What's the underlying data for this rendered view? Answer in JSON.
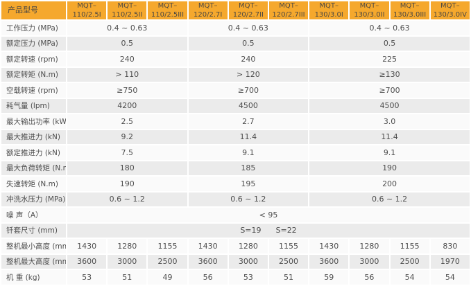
{
  "table": {
    "corner_label": "产品型号",
    "columns": [
      {
        "line1": "MQT–",
        "line2": "110/2.5I"
      },
      {
        "line1": "MQT–",
        "line2": "110/2.5II"
      },
      {
        "line1": "MQT–",
        "line2": "110/2.5III"
      },
      {
        "line1": "MQT–",
        "line2": "120/2.7I"
      },
      {
        "line1": "MQT–",
        "line2": "120/2.7II"
      },
      {
        "line1": "MQT–",
        "line2": "120/2.7III"
      },
      {
        "line1": "MQT–",
        "line2": "130/3.0I"
      },
      {
        "line1": "MQT–",
        "line2": "130/3.0II"
      },
      {
        "line1": "MQT–",
        "line2": "130/3.0III"
      },
      {
        "line1": "MQT–",
        "line2": "130/3.0IV"
      }
    ],
    "rows": [
      {
        "label": "工作压力 (MPa)",
        "cells": [
          {
            "text": "0.4 ~ 0.63",
            "span": 3
          },
          {
            "text": "0.4 ~ 0.63",
            "span": 3
          },
          {
            "text": "0.4 ~ 0.63",
            "span": 4
          }
        ]
      },
      {
        "label": "额定压力 (MPa)",
        "cells": [
          {
            "text": "0.5",
            "span": 3
          },
          {
            "text": "0.5",
            "span": 3
          },
          {
            "text": "0.5",
            "span": 4
          }
        ]
      },
      {
        "label": "额定转速 (rpm)",
        "cells": [
          {
            "text": "240",
            "span": 3
          },
          {
            "text": "240",
            "span": 3
          },
          {
            "text": "225",
            "span": 4
          }
        ]
      },
      {
        "label": "额定转矩 (N.m)",
        "cells": [
          {
            "text": "> 110",
            "span": 3
          },
          {
            "text": "> 120",
            "span": 3
          },
          {
            "text": "≥130",
            "span": 4
          }
        ]
      },
      {
        "label": "空载转速 (rpm)",
        "cells": [
          {
            "text": "≥750",
            "span": 3
          },
          {
            "text": "≥700",
            "span": 3
          },
          {
            "text": "≥700",
            "span": 4
          }
        ]
      },
      {
        "label": "耗气量 (lpm)",
        "cells": [
          {
            "text": "4200",
            "span": 3
          },
          {
            "text": "4500",
            "span": 3
          },
          {
            "text": "4500",
            "span": 4
          }
        ]
      },
      {
        "label": "最大输出功率 (kW)",
        "cells": [
          {
            "text": "2.5",
            "span": 3
          },
          {
            "text": "2.7",
            "span": 3
          },
          {
            "text": "3.0",
            "span": 4
          }
        ]
      },
      {
        "label": "最大推进力 (kN)",
        "cells": [
          {
            "text": "9.2",
            "span": 3
          },
          {
            "text": "11.4",
            "span": 3
          },
          {
            "text": "11.4",
            "span": 4
          }
        ]
      },
      {
        "label": "额定推进力 (kN)",
        "cells": [
          {
            "text": "7.5",
            "span": 3
          },
          {
            "text": "9.1",
            "span": 3
          },
          {
            "text": "9.1",
            "span": 4
          }
        ]
      },
      {
        "label": "最大负荷转矩 (N.m)",
        "cells": [
          {
            "text": "180",
            "span": 3
          },
          {
            "text": "185",
            "span": 3
          },
          {
            "text": "190",
            "span": 4
          }
        ]
      },
      {
        "label": "失速转矩 (N.m)",
        "cells": [
          {
            "text": "190",
            "span": 3
          },
          {
            "text": "195",
            "span": 3
          },
          {
            "text": "200",
            "span": 4
          }
        ]
      },
      {
        "label": "冲洗水压力 (MPa)",
        "cells": [
          {
            "text": "0.6 ~ 1.2",
            "span": 3
          },
          {
            "text": "0.6 ~ 1.2",
            "span": 3
          },
          {
            "text": "0.6 ~ 1.2",
            "span": 4
          }
        ]
      },
      {
        "label": "噪 声（A）",
        "cells": [
          {
            "text": "< 95",
            "span": 10
          }
        ]
      },
      {
        "label": "钎套尺寸 (mm)",
        "cells": [
          {
            "text": "S=19      S=22",
            "span": 10
          }
        ]
      },
      {
        "label": "整机最小高度 (mm)",
        "cells": [
          {
            "text": "1430",
            "span": 1
          },
          {
            "text": "1280",
            "span": 1
          },
          {
            "text": "1155",
            "span": 1
          },
          {
            "text": "1430",
            "span": 1
          },
          {
            "text": "1280",
            "span": 1
          },
          {
            "text": "1155",
            "span": 1
          },
          {
            "text": "1430",
            "span": 1
          },
          {
            "text": "1280",
            "span": 1
          },
          {
            "text": "1155",
            "span": 1
          },
          {
            "text": "830",
            "span": 1
          }
        ]
      },
      {
        "label": "整机最大高度 (mm)",
        "cells": [
          {
            "text": "3600",
            "span": 1
          },
          {
            "text": "3000",
            "span": 1
          },
          {
            "text": "2500",
            "span": 1
          },
          {
            "text": "3600",
            "span": 1
          },
          {
            "text": "3000",
            "span": 1
          },
          {
            "text": "2500",
            "span": 1
          },
          {
            "text": "3600",
            "span": 1
          },
          {
            "text": "3000",
            "span": 1
          },
          {
            "text": "2500",
            "span": 1
          },
          {
            "text": "1970",
            "span": 1
          }
        ]
      },
      {
        "label": "机 重 (kg)",
        "cells": [
          {
            "text": "53",
            "span": 1
          },
          {
            "text": "51",
            "span": 1
          },
          {
            "text": "49",
            "span": 1
          },
          {
            "text": "56",
            "span": 1
          },
          {
            "text": "53",
            "span": 1
          },
          {
            "text": "51",
            "span": 1
          },
          {
            "text": "59",
            "span": 1
          },
          {
            "text": "56",
            "span": 1
          },
          {
            "text": "54",
            "span": 1
          },
          {
            "text": "54",
            "span": 1
          }
        ]
      }
    ]
  },
  "colors": {
    "header_bg": "#F5A82D",
    "header_text": "#4C4842",
    "row_light": "#FAFAFA",
    "row_dark": "#EBEBEB",
    "text": "#4D4D4D",
    "gap": "#FFFFFF"
  }
}
